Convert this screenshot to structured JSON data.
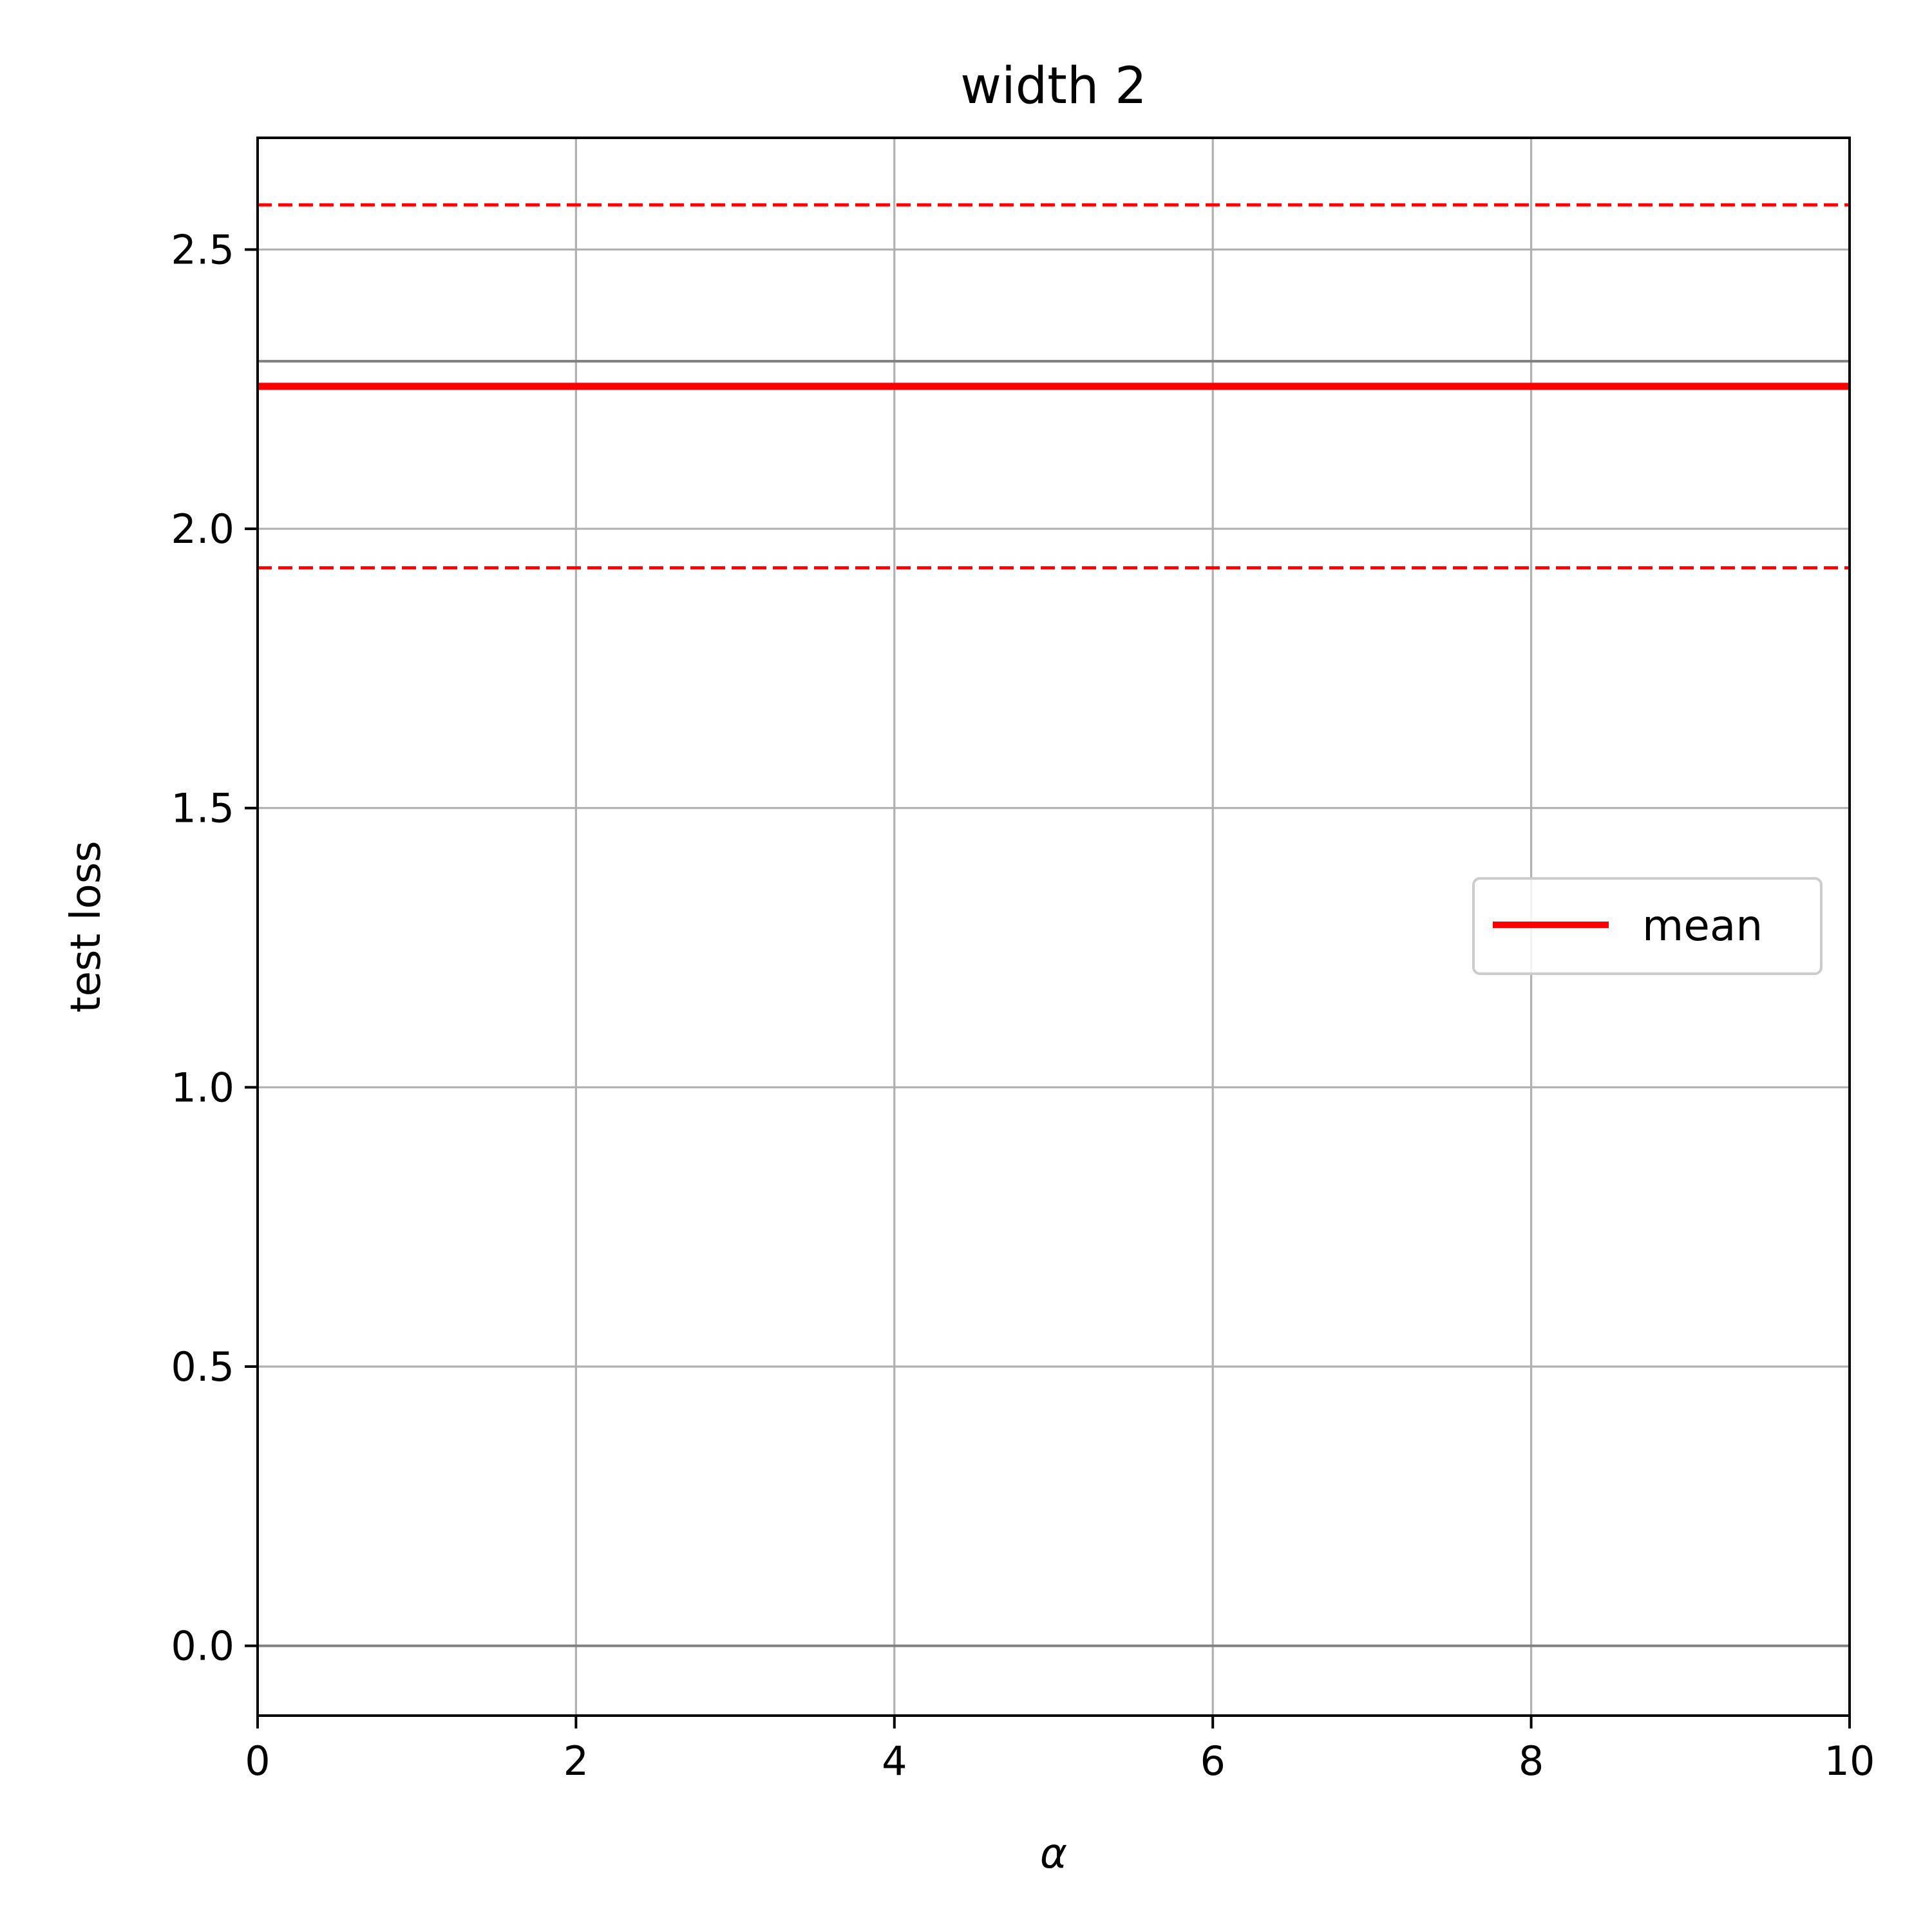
{
  "chart_data": {
    "type": "line",
    "title": "width 2",
    "xlabel": "α",
    "ylabel": "test loss",
    "xlim": [
      0,
      10
    ],
    "ylim": [
      -0.125,
      2.7
    ],
    "xticks": [
      0,
      2,
      4,
      6,
      8,
      10
    ],
    "xtick_labels": [
      "0",
      "2",
      "4",
      "6",
      "8",
      "10"
    ],
    "yticks": [
      0.0,
      0.5,
      1.0,
      1.5,
      2.0,
      2.5
    ],
    "ytick_labels": [
      "0.0",
      "0.5",
      "1.0",
      "1.5",
      "2.0",
      "2.5"
    ],
    "grid": true,
    "legend": {
      "placement": "center-right",
      "entries": [
        "mean"
      ]
    },
    "series": [
      {
        "name": "mean",
        "style": "solid",
        "color": "#ff0000",
        "x": [
          0,
          10
        ],
        "y": [
          2.255,
          2.255
        ]
      },
      {
        "style": "dashed",
        "color": "#ff0000",
        "x": [
          0,
          10
        ],
        "y": [
          2.58,
          2.58
        ]
      },
      {
        "style": "dashed",
        "color": "#ff0000",
        "x": [
          0,
          10
        ],
        "y": [
          1.93,
          1.93
        ]
      }
    ],
    "reference_lines": [
      {
        "color": "#808080",
        "y": 2.3
      },
      {
        "color": "#808080",
        "y": 0.0
      }
    ]
  }
}
